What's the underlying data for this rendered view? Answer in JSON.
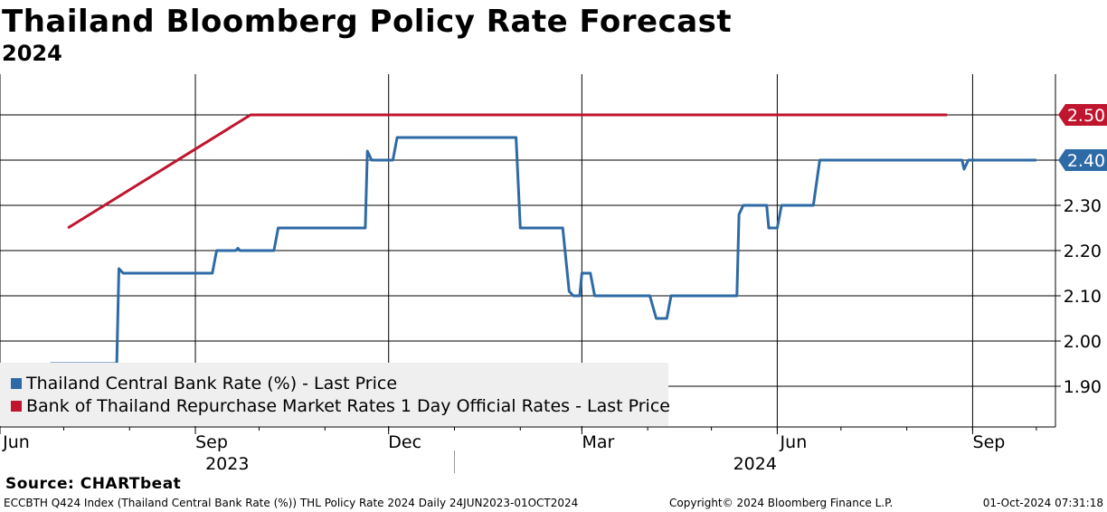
{
  "header": {
    "title": "Thailand Bloomberg Policy Rate Forecast",
    "subtitle": "2024"
  },
  "source": "Source: CHARTbeat",
  "footer": {
    "left": "ECCBTH Q424 Index (Thailand Central Bank Rate (%)) THL Policy Rate 2024  Daily 24JUN2023-01OCT2024",
    "center": "Copyright© 2024 Bloomberg Finance L.P.",
    "right": "01-Oct-2024 07:31:18"
  },
  "chart_data": {
    "type": "line",
    "title": "Thailand Bloomberg Policy Rate Forecast",
    "subtitle": "2024",
    "x_range": [
      "2023-06-01",
      "2024-10-10"
    ],
    "ylim": [
      1.81,
      2.59
    ],
    "y_ticks": [
      1.9,
      2.0,
      2.1,
      2.2,
      2.3,
      2.4,
      2.5
    ],
    "y_tick_labels": [
      "1.90",
      "2.00",
      "2.10",
      "2.20",
      "2.30",
      "2.40",
      "2.50"
    ],
    "y_axis_side": "right",
    "x_ticks": [
      {
        "date": "2023-06-01",
        "label": "Jun"
      },
      {
        "date": "2023-09-01",
        "label": "Sep"
      },
      {
        "date": "2023-12-01",
        "label": "Dec"
      },
      {
        "date": "2024-03-01",
        "label": "Mar"
      },
      {
        "date": "2024-06-01",
        "label": "Jun"
      },
      {
        "date": "2024-09-01",
        "label": "Sep"
      }
    ],
    "year_labels": [
      {
        "label": "2023",
        "from": "2023-06-01",
        "to": "2024-01-01"
      },
      {
        "label": "2024",
        "from": "2024-01-01",
        "to": "2024-10-10"
      }
    ],
    "grid": true,
    "legend_position": "bottom-left",
    "series": [
      {
        "name": "Thailand Central Bank Rate (%) - Last Price",
        "color": "#2e6aa6",
        "last_value_label": "2.40",
        "points": [
          [
            "2023-06-01",
            1.9
          ],
          [
            "2023-06-24",
            1.9
          ],
          [
            "2023-06-25",
            1.95
          ],
          [
            "2023-07-26",
            1.95
          ],
          [
            "2023-07-27",
            2.16
          ],
          [
            "2023-07-29",
            2.15
          ],
          [
            "2023-09-09",
            2.15
          ],
          [
            "2023-09-11",
            2.2
          ],
          [
            "2023-09-20",
            2.2
          ],
          [
            "2023-09-21",
            2.205
          ],
          [
            "2023-09-22",
            2.2
          ],
          [
            "2023-10-08",
            2.2
          ],
          [
            "2023-10-10",
            2.25
          ],
          [
            "2023-11-20",
            2.25
          ],
          [
            "2023-11-21",
            2.42
          ],
          [
            "2023-11-23",
            2.4
          ],
          [
            "2023-12-03",
            2.4
          ],
          [
            "2023-12-05",
            2.45
          ],
          [
            "2024-01-30",
            2.45
          ],
          [
            "2024-02-01",
            2.25
          ],
          [
            "2024-02-21",
            2.25
          ],
          [
            "2024-02-24",
            2.11
          ],
          [
            "2024-02-26",
            2.1
          ],
          [
            "2024-02-29",
            2.1
          ],
          [
            "2024-03-01",
            2.15
          ],
          [
            "2024-03-05",
            2.15
          ],
          [
            "2024-03-07",
            2.1
          ],
          [
            "2024-04-02",
            2.1
          ],
          [
            "2024-04-05",
            2.05
          ],
          [
            "2024-04-10",
            2.05
          ],
          [
            "2024-04-12",
            2.1
          ],
          [
            "2024-04-14",
            2.1
          ],
          [
            "2024-04-16",
            2.1
          ],
          [
            "2024-05-13",
            2.1
          ],
          [
            "2024-05-14",
            2.28
          ],
          [
            "2024-05-16",
            2.3
          ],
          [
            "2024-05-27",
            2.3
          ],
          [
            "2024-05-28",
            2.25
          ],
          [
            "2024-06-01",
            2.25
          ],
          [
            "2024-06-03",
            2.3
          ],
          [
            "2024-06-18",
            2.3
          ],
          [
            "2024-06-21",
            2.4
          ],
          [
            "2024-08-27",
            2.4
          ],
          [
            "2024-08-28",
            2.38
          ],
          [
            "2024-08-30",
            2.4
          ],
          [
            "2024-10-01",
            2.4
          ]
        ]
      },
      {
        "name": "Bank of Thailand Repurchase Market Rates 1 Day Official Rates - Last Price",
        "color": "#c0152f",
        "last_value_label": "2.50",
        "points": [
          [
            "2023-07-03",
            2.25
          ],
          [
            "2023-09-27",
            2.5
          ],
          [
            "2024-08-20",
            2.5
          ]
        ]
      }
    ]
  }
}
